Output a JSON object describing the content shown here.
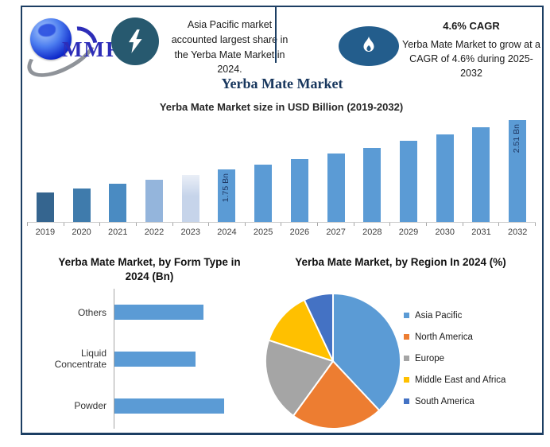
{
  "logo": {
    "text": "MMR"
  },
  "header": {
    "left_callout": {
      "icon": "lightning-icon",
      "text": "Asia Pacific market accounted largest share in the Yerba Mate Market in 2024."
    },
    "right_callout": {
      "icon": "flame-icon",
      "heading": "4.6% CAGR",
      "text": "Yerba Mate Market to grow at a CAGR of 4.6% during 2025-2032"
    }
  },
  "page_title": "Yerba Mate Market",
  "colors": {
    "accent_bar": "#5b9bd5",
    "frame_border": "#1c3e63",
    "title_navy": "#17365d"
  },
  "chart_data": [
    {
      "id": "market-size-bar",
      "type": "bar",
      "title": "Yerba Mate Market size in USD Billion (2019-2032)",
      "unit": "USD Billion",
      "categories": [
        "2019",
        "2020",
        "2021",
        "2022",
        "2023",
        "2024",
        "2025",
        "2026",
        "2027",
        "2028",
        "2029",
        "2030",
        "2031",
        "2032"
      ],
      "values": [
        1.4,
        1.46,
        1.53,
        1.6,
        1.67,
        1.75,
        1.83,
        1.91,
        2.0,
        2.09,
        2.19,
        2.29,
        2.4,
        2.51
      ],
      "bar_labels": {
        "2024": "1.75 Bn",
        "2032": "2.51 Bn"
      },
      "bar_color_default": "#5b9bd5",
      "bar_colors": {
        "2019": "#35658f",
        "2020": "#3f7bac",
        "2021": "#4a8bc2",
        "2022": "#94b5dc",
        "2023": "#c6d4ea"
      },
      "bar_gradient_top": {
        "2023": "#eaeff7"
      },
      "grid": false,
      "baseline_value": 0.95
    },
    {
      "id": "form-type-bar",
      "type": "bar",
      "orientation": "horizontal",
      "title": "Yerba Mate Market, by Form Type in 2024 (Bn)",
      "categories": [
        "Others",
        "Liquid Concentrate",
        "Powder"
      ],
      "values": [
        0.56,
        0.51,
        0.69
      ],
      "bar_color": "#5b9bd5",
      "xlabel": "",
      "ylabel": "",
      "grid": false
    },
    {
      "id": "region-pie",
      "type": "pie",
      "title": "Yerba Mate Market, by Region In 2024 (%)",
      "labels": [
        "Asia Pacific",
        "North America",
        "Europe",
        "Middle East and Africa",
        "South America"
      ],
      "values": [
        38,
        22,
        20,
        13,
        7
      ],
      "colors": [
        "#5b9bd5",
        "#ed7d31",
        "#a5a5a5",
        "#ffc000",
        "#4472c4"
      ],
      "legend_position": "right",
      "start_angle_deg": 0,
      "direction": "clockwise"
    }
  ]
}
